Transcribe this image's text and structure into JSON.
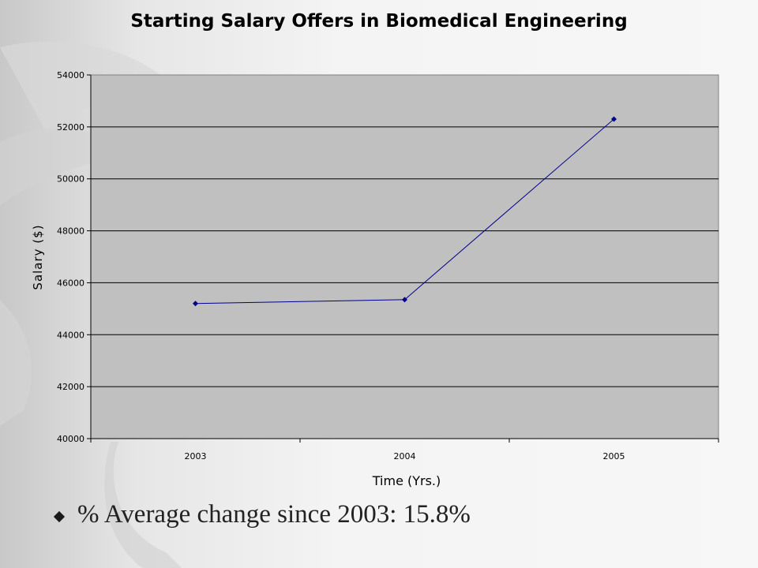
{
  "chart_data": {
    "type": "line",
    "title": "Starting Salary Offers in Biomedical Engineering",
    "xlabel": "Time (Yrs.)",
    "ylabel": "Salary ($)",
    "categories": [
      "2003",
      "2004",
      "2005"
    ],
    "series": [
      {
        "values": [
          45200,
          45350,
          52300
        ],
        "color": "#00008b"
      }
    ],
    "ylim": [
      40000,
      54000
    ],
    "yticks": [
      "40000",
      "42000",
      "44000",
      "46000",
      "48000",
      "50000",
      "52000",
      "54000"
    ],
    "grid": true,
    "plot_background": "#c0c0c0"
  },
  "bullet": {
    "text": "% Average  change since 2003: 15.8%",
    "icon": "diamond-bullet-icon"
  }
}
